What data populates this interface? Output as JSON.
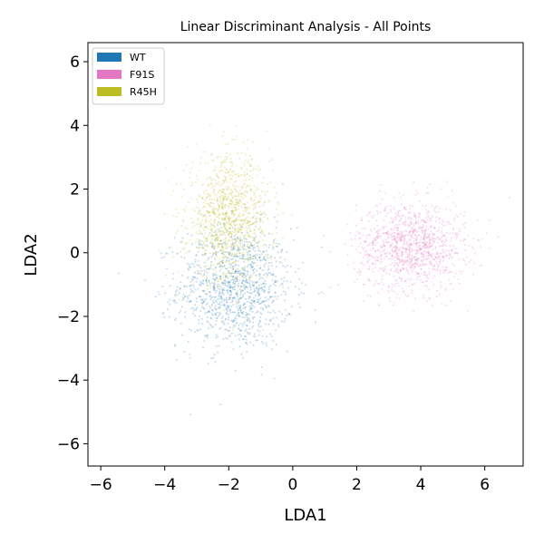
{
  "chart_data": {
    "type": "scatter",
    "title": "Linear Discriminant Analysis - All Points",
    "xlabel": "LDA1",
    "ylabel": "LDA2",
    "xlim": [
      -6.4,
      7.2
    ],
    "ylim": [
      -6.7,
      6.6
    ],
    "xticks": [
      -6,
      -4,
      -2,
      0,
      2,
      4,
      6
    ],
    "yticks": [
      -6,
      -4,
      -2,
      0,
      2,
      4,
      6
    ],
    "xtick_labels": [
      "−6",
      "−4",
      "−2",
      "0",
      "2",
      "4",
      "6"
    ],
    "ytick_labels": [
      "−6",
      "−4",
      "−2",
      "0",
      "2",
      "4",
      "6"
    ],
    "grid": false,
    "legend_position": "top-left",
    "series": [
      {
        "name": "WT",
        "color": "#1f77b4",
        "center": [
          -1.8,
          -1.1
        ],
        "spread": [
          0.9,
          0.95
        ]
      },
      {
        "name": "F91S",
        "color": "#e377c2",
        "center": [
          3.7,
          0.2
        ],
        "spread": [
          0.85,
          0.7
        ]
      },
      {
        "name": "R45H",
        "color": "#bcbd22",
        "center": [
          -2.0,
          1.0
        ],
        "spread": [
          0.65,
          1.0
        ]
      }
    ]
  }
}
